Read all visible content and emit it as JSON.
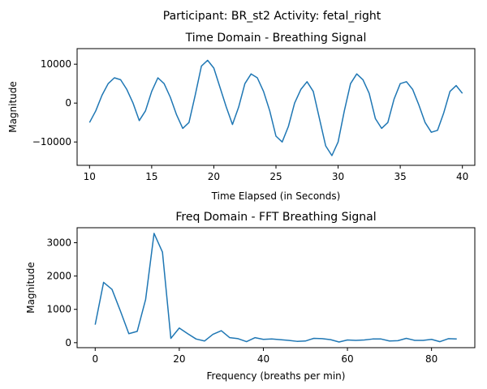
{
  "suptitle": "Participant: BR_st2  Activity: fetal_right",
  "chart_data": [
    {
      "type": "line",
      "title": "Time Domain - Breathing Signal",
      "xlabel": "Time Elapsed (in Seconds)",
      "ylabel": "Magnitude",
      "xlim": [
        9,
        41
      ],
      "ylim": [
        -16000,
        14000
      ],
      "xticks": [
        10,
        15,
        20,
        25,
        30,
        35,
        40
      ],
      "yticks": [
        -10000,
        0,
        10000
      ],
      "yticklabels": [
        "−10000",
        "0",
        "10000"
      ],
      "color": "#1f77b4",
      "series": [
        {
          "x": [
            10,
            10.5,
            11,
            11.5,
            12,
            12.5,
            13,
            13.5,
            14,
            14.5,
            15,
            15.5,
            16,
            16.5,
            17,
            17.5,
            18,
            18.5,
            19,
            19.5,
            20,
            20.5,
            21,
            21.5,
            22,
            22.5,
            23,
            23.5,
            24,
            24.5,
            25,
            25.5,
            26,
            26.5,
            27,
            27.5,
            28,
            28.5,
            29,
            29.5,
            30,
            30.5,
            31,
            31.5,
            32,
            32.5,
            33,
            33.5,
            34,
            34.5,
            35,
            35.5,
            36,
            36.5,
            37,
            37.5,
            38,
            38.5,
            39,
            39.5,
            40
          ],
          "y": [
            -5000,
            -2000,
            2000,
            5000,
            6500,
            6000,
            3500,
            0,
            -4500,
            -2000,
            3000,
            6500,
            5000,
            1500,
            -3000,
            -6500,
            -5000,
            2000,
            9500,
            11000,
            9000,
            4000,
            -1000,
            -5500,
            -1000,
            5000,
            7500,
            6500,
            3000,
            -2000,
            -8500,
            -10000,
            -6000,
            0,
            3500,
            5500,
            3000,
            -4000,
            -11000,
            -13500,
            -10000,
            -2000,
            5000,
            7500,
            6000,
            2500,
            -4000,
            -6500,
            -5000,
            1000,
            5000,
            5500,
            3500,
            -500,
            -5000,
            -7500,
            -7000,
            -2500,
            3000,
            4500,
            2500
          ]
        }
      ]
    },
    {
      "type": "line",
      "title": "Freq Domain - FFT Breathing Signal",
      "xlabel": "Frequency (breaths per min)",
      "ylabel": "Magnitude",
      "xlim": [
        -4.3,
        90.3
      ],
      "ylim": [
        -150,
        3450
      ],
      "xticks": [
        0,
        20,
        40,
        60,
        80
      ],
      "yticks": [
        0,
        1000,
        2000,
        3000
      ],
      "color": "#1f77b4",
      "series": [
        {
          "x": [
            0,
            2,
            4,
            6,
            8,
            10,
            12,
            14,
            16,
            18,
            20,
            22,
            24,
            26,
            28,
            30,
            32,
            34,
            36,
            38,
            40,
            42,
            44,
            46,
            48,
            50,
            52,
            54,
            56,
            58,
            60,
            62,
            64,
            66,
            68,
            70,
            72,
            74,
            76,
            78,
            80,
            82,
            84,
            86
          ],
          "y": [
            540,
            1810,
            1600,
            950,
            270,
            340,
            1300,
            3280,
            2720,
            130,
            440,
            270,
            110,
            50,
            250,
            360,
            150,
            120,
            30,
            150,
            100,
            110,
            90,
            70,
            40,
            50,
            130,
            120,
            90,
            20,
            80,
            70,
            80,
            110,
            110,
            50,
            60,
            130,
            70,
            70,
            100,
            30,
            120,
            110
          ]
        }
      ]
    }
  ]
}
